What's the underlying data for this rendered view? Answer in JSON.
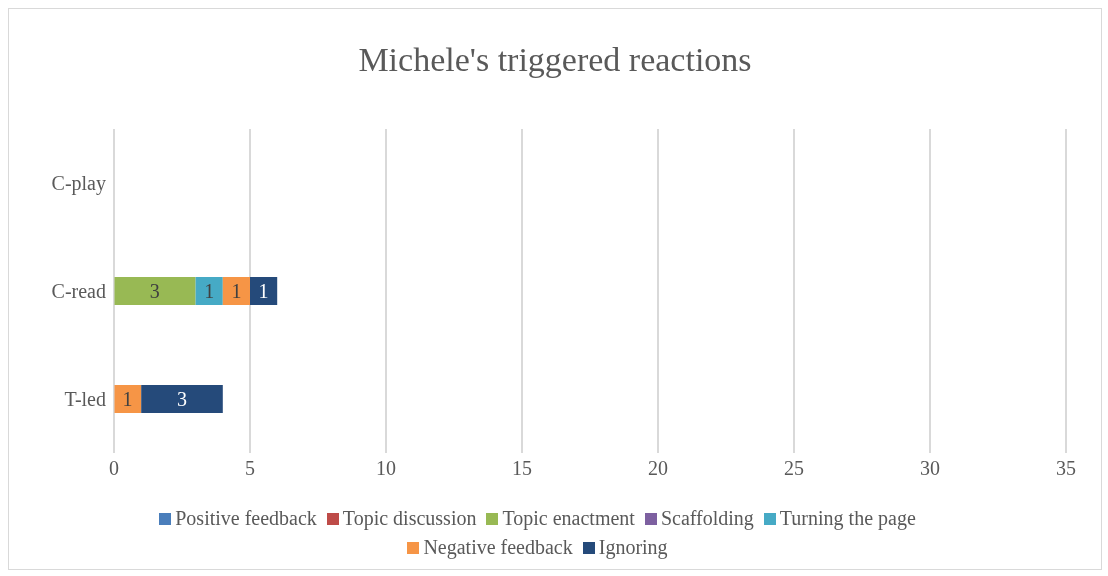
{
  "chart_data": {
    "type": "bar",
    "orientation": "horizontal",
    "stacked": true,
    "title": "Michele's triggered reactions",
    "categories": [
      "C-play",
      "C-read",
      "T-led"
    ],
    "series": [
      {
        "name": "Positive feedback",
        "color": "#4a7ebb",
        "values": [
          null,
          null,
          null
        ]
      },
      {
        "name": "Topic discussion",
        "color": "#be4b48",
        "values": [
          null,
          null,
          null
        ]
      },
      {
        "name": "Topic enactment",
        "color": "#98b954",
        "values": [
          null,
          3,
          null
        ]
      },
      {
        "name": "Scaffolding",
        "color": "#7d60a0",
        "values": [
          null,
          null,
          null
        ]
      },
      {
        "name": "Turning the page",
        "color": "#46aac5",
        "values": [
          null,
          1,
          null
        ]
      },
      {
        "name": "Negative feedback",
        "color": "#f69546",
        "values": [
          null,
          1,
          1
        ]
      },
      {
        "name": "Ignoring",
        "color": "#254a7a",
        "values": [
          null,
          1,
          3
        ]
      }
    ],
    "xlim": [
      0,
      35
    ],
    "xticks": [
      0,
      5,
      10,
      15,
      20,
      25,
      30,
      35
    ],
    "grid": "x",
    "legend": "bottom",
    "data_labels": true
  }
}
